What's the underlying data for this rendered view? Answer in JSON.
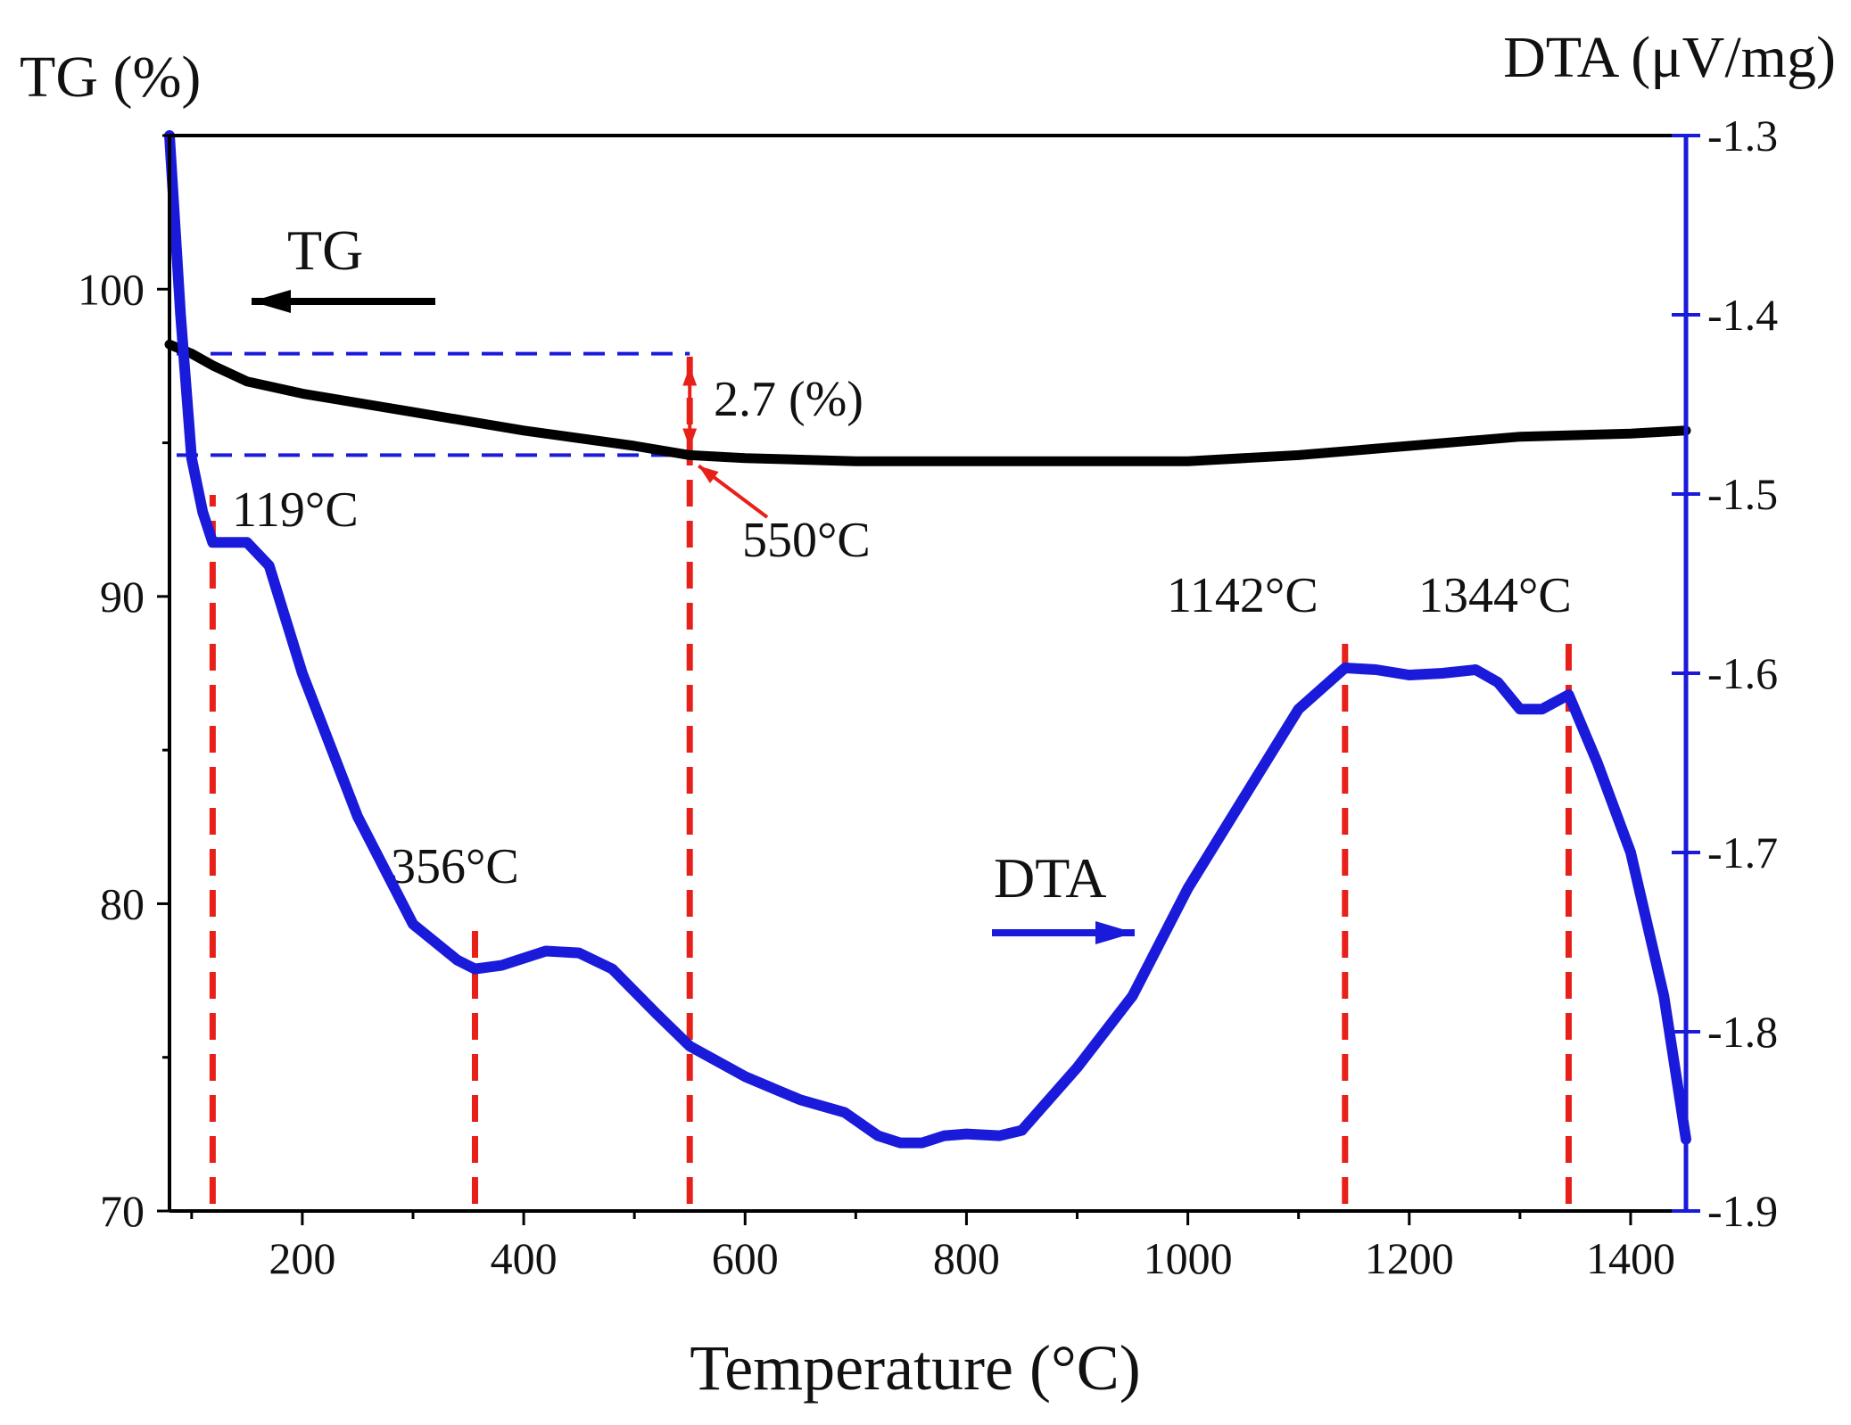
{
  "chart_data": {
    "type": "line",
    "title": "",
    "xlabel": "Temperature (°C)",
    "ylabel_left": "TG (%)",
    "ylabel_right": "DTA (μV/mg)",
    "xlim": [
      80,
      1450
    ],
    "ylim_left": [
      70,
      105
    ],
    "ylim_right": [
      -1.9,
      -1.3
    ],
    "x_ticks": [
      200,
      400,
      600,
      800,
      1000,
      1200,
      1400
    ],
    "y_left_ticks": [
      70,
      80,
      90,
      100
    ],
    "y_right_ticks": [
      -1.3,
      -1.4,
      -1.5,
      -1.6,
      -1.7,
      -1.8,
      -1.9
    ],
    "grid": false,
    "axis_colors": {
      "left": "#000000",
      "right": "#1a1adb",
      "bottom": "#000000",
      "top": "#000000"
    },
    "series": [
      {
        "name": "TG",
        "axis": "left",
        "color": "#000000",
        "x": [
          80,
          100,
          120,
          150,
          200,
          300,
          400,
          500,
          550,
          600,
          700,
          800,
          900,
          1000,
          1100,
          1200,
          1300,
          1400,
          1450
        ],
        "y": [
          98.2,
          97.9,
          97.5,
          97.0,
          96.6,
          96.0,
          95.4,
          94.9,
          94.6,
          94.5,
          94.4,
          94.4,
          94.4,
          94.4,
          94.6,
          94.9,
          95.2,
          95.3,
          95.4
        ]
      },
      {
        "name": "DTA",
        "axis": "right",
        "color": "#1a1adb",
        "x": [
          80,
          90,
          100,
          110,
          119,
          130,
          150,
          170,
          200,
          250,
          300,
          340,
          356,
          380,
          420,
          450,
          480,
          520,
          550,
          600,
          650,
          690,
          720,
          740,
          760,
          780,
          800,
          830,
          850,
          900,
          950,
          1000,
          1050,
          1100,
          1142,
          1170,
          1200,
          1230,
          1260,
          1280,
          1300,
          1320,
          1344,
          1370,
          1400,
          1430,
          1450
        ],
        "y": [
          -1.3,
          -1.4,
          -1.48,
          -1.51,
          -1.527,
          -1.527,
          -1.527,
          -1.54,
          -1.6,
          -1.68,
          -1.74,
          -1.76,
          -1.765,
          -1.763,
          -1.755,
          -1.756,
          -1.765,
          -1.79,
          -1.808,
          -1.825,
          -1.838,
          -1.845,
          -1.858,
          -1.862,
          -1.862,
          -1.858,
          -1.857,
          -1.858,
          -1.855,
          -1.82,
          -1.78,
          -1.72,
          -1.67,
          -1.62,
          -1.597,
          -1.598,
          -1.601,
          -1.6,
          -1.598,
          -1.605,
          -1.62,
          -1.62,
          -1.612,
          -1.65,
          -1.7,
          -1.78,
          -1.86
        ]
      }
    ],
    "reference_lines": {
      "vertical": [
        119,
        356,
        550,
        1142,
        1344
      ],
      "tg_levels": [
        97.9,
        94.6
      ]
    },
    "annotations": {
      "tg_label": "TG",
      "dta_label": "DTA",
      "mass_loss": "2.7 (%)",
      "peaks": [
        "119°C",
        "356°C",
        "550°C",
        "1142°C",
        "1344°C"
      ]
    }
  }
}
